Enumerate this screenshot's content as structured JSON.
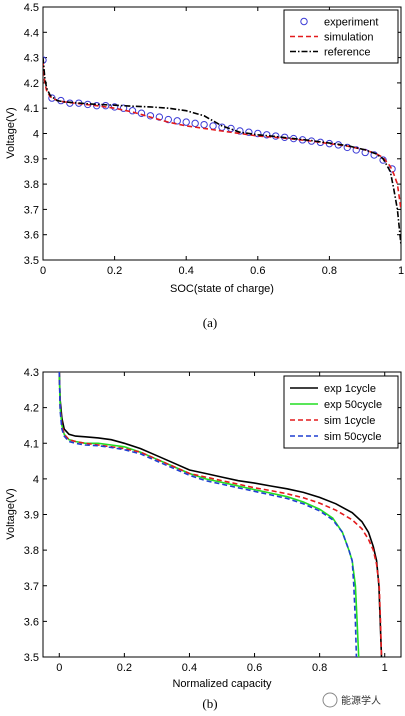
{
  "chart_data": [
    {
      "type": "line",
      "panel_caption": "(a)",
      "xlabel": "SOC(state of charge)",
      "ylabel": "Voltage(V)",
      "xlim": [
        0,
        1
      ],
      "ylim": [
        3.5,
        4.5
      ],
      "xticks": [
        "0",
        "0.2",
        "0.4",
        "0.6",
        "0.8",
        "1"
      ],
      "yticks": [
        "3.5",
        "3.6",
        "3.7",
        "3.8",
        "3.9",
        "4",
        "4.1",
        "4.2",
        "4.3",
        "4.4",
        "4.5"
      ],
      "legend_position": "top-right",
      "series": [
        {
          "name": "experiment",
          "color": "#3b3bd6",
          "style": "circle-markers",
          "x": [
            0.0,
            0.025,
            0.05,
            0.075,
            0.1,
            0.125,
            0.15,
            0.175,
            0.2,
            0.225,
            0.25,
            0.275,
            0.3,
            0.325,
            0.35,
            0.375,
            0.4,
            0.425,
            0.45,
            0.475,
            0.5,
            0.525,
            0.55,
            0.575,
            0.6,
            0.625,
            0.65,
            0.675,
            0.7,
            0.725,
            0.75,
            0.775,
            0.8,
            0.825,
            0.85,
            0.875,
            0.9,
            0.925,
            0.95,
            0.975
          ],
          "y": [
            4.29,
            4.14,
            4.13,
            4.12,
            4.12,
            4.115,
            4.11,
            4.11,
            4.105,
            4.1,
            4.09,
            4.08,
            4.07,
            4.065,
            4.055,
            4.05,
            4.045,
            4.04,
            4.035,
            4.03,
            4.025,
            4.02,
            4.01,
            4.005,
            4.0,
            3.995,
            3.99,
            3.985,
            3.98,
            3.975,
            3.97,
            3.965,
            3.96,
            3.955,
            3.945,
            3.935,
            3.925,
            3.915,
            3.895,
            3.86
          ]
        },
        {
          "name": "simulation",
          "color": "#e31a1c",
          "style": "dashed",
          "x": [
            0.0,
            0.005,
            0.01,
            0.02,
            0.04,
            0.06,
            0.1,
            0.15,
            0.2,
            0.25,
            0.3,
            0.35,
            0.4,
            0.45,
            0.5,
            0.55,
            0.6,
            0.65,
            0.7,
            0.75,
            0.8,
            0.85,
            0.9,
            0.93,
            0.95,
            0.97,
            0.98,
            0.99,
            1.0
          ],
          "y": [
            4.28,
            4.2,
            4.17,
            4.145,
            4.13,
            4.125,
            4.118,
            4.11,
            4.1,
            4.085,
            4.065,
            4.045,
            4.03,
            4.02,
            4.01,
            4.0,
            3.99,
            3.985,
            3.978,
            3.97,
            3.96,
            3.95,
            3.935,
            3.92,
            3.905,
            3.87,
            3.84,
            3.8,
            3.7
          ]
        },
        {
          "name": "reference",
          "color": "#000000",
          "style": "dash-dot",
          "x": [
            0.0,
            0.005,
            0.01,
            0.02,
            0.04,
            0.06,
            0.1,
            0.15,
            0.2,
            0.25,
            0.3,
            0.35,
            0.4,
            0.45,
            0.5,
            0.55,
            0.6,
            0.65,
            0.7,
            0.75,
            0.8,
            0.85,
            0.9,
            0.93,
            0.95,
            0.97,
            0.98,
            0.99,
            1.0
          ],
          "y": [
            4.3,
            4.22,
            4.18,
            4.15,
            4.13,
            4.125,
            4.12,
            4.115,
            4.112,
            4.108,
            4.105,
            4.1,
            4.09,
            4.07,
            4.03,
            4.005,
            3.995,
            3.988,
            3.98,
            3.972,
            3.962,
            3.952,
            3.935,
            3.92,
            3.9,
            3.85,
            3.78,
            3.7,
            3.56
          ]
        }
      ]
    },
    {
      "type": "line",
      "panel_caption": "(b)",
      "xlabel": "Normalized capacity",
      "ylabel": "Voltage(V)",
      "xlim": [
        -0.05,
        1.05
      ],
      "ylim": [
        3.5,
        4.3
      ],
      "xticks": [
        "0",
        "0.2",
        "0.4",
        "0.6",
        "0.8",
        "1"
      ],
      "yticks": [
        "3.5",
        "3.6",
        "3.7",
        "3.8",
        "3.9",
        "4",
        "4.1",
        "4.2",
        "4.3"
      ],
      "legend_position": "top-right",
      "series": [
        {
          "name": "exp 1cycle",
          "color": "#000000",
          "style": "solid",
          "x": [
            0.0,
            0.003,
            0.008,
            0.015,
            0.03,
            0.05,
            0.08,
            0.12,
            0.16,
            0.2,
            0.25,
            0.3,
            0.35,
            0.4,
            0.45,
            0.5,
            0.55,
            0.6,
            0.65,
            0.7,
            0.75,
            0.8,
            0.85,
            0.9,
            0.93,
            0.95,
            0.965,
            0.975,
            0.982,
            0.986,
            0.99
          ],
          "y": [
            4.3,
            4.22,
            4.17,
            4.14,
            4.125,
            4.12,
            4.118,
            4.115,
            4.11,
            4.1,
            4.085,
            4.065,
            4.045,
            4.025,
            4.015,
            4.005,
            3.995,
            3.988,
            3.98,
            3.972,
            3.962,
            3.948,
            3.93,
            3.905,
            3.88,
            3.85,
            3.81,
            3.77,
            3.7,
            3.6,
            3.5
          ]
        },
        {
          "name": "exp 50cycle",
          "color": "#22dd22",
          "style": "solid",
          "x": [
            0.0,
            0.003,
            0.008,
            0.015,
            0.03,
            0.05,
            0.08,
            0.12,
            0.16,
            0.2,
            0.25,
            0.3,
            0.35,
            0.4,
            0.45,
            0.5,
            0.55,
            0.6,
            0.65,
            0.7,
            0.75,
            0.8,
            0.84,
            0.87,
            0.89,
            0.9,
            0.91,
            0.915,
            0.92
          ],
          "y": [
            4.3,
            4.2,
            4.15,
            4.125,
            4.11,
            4.105,
            4.1,
            4.1,
            4.095,
            4.09,
            4.075,
            4.055,
            4.035,
            4.015,
            4.0,
            3.99,
            3.98,
            3.97,
            3.96,
            3.95,
            3.935,
            3.915,
            3.89,
            3.85,
            3.8,
            3.77,
            3.7,
            3.6,
            3.5
          ]
        },
        {
          "name": "sim 1cycle",
          "color": "#e31a1c",
          "style": "dashed",
          "x": [
            0.0,
            0.003,
            0.008,
            0.015,
            0.03,
            0.05,
            0.08,
            0.12,
            0.16,
            0.2,
            0.25,
            0.3,
            0.35,
            0.4,
            0.45,
            0.5,
            0.55,
            0.6,
            0.65,
            0.7,
            0.75,
            0.8,
            0.85,
            0.9,
            0.93,
            0.95,
            0.965,
            0.975,
            0.983,
            0.987,
            0.99
          ],
          "y": [
            4.3,
            4.2,
            4.15,
            4.125,
            4.11,
            4.105,
            4.1,
            4.095,
            4.09,
            4.085,
            4.075,
            4.055,
            4.035,
            4.015,
            4.005,
            3.995,
            3.985,
            3.975,
            3.967,
            3.958,
            3.947,
            3.932,
            3.912,
            3.885,
            3.86,
            3.83,
            3.8,
            3.76,
            3.7,
            3.6,
            3.5
          ]
        },
        {
          "name": "sim 50cycle",
          "color": "#1f3fd1",
          "style": "dashed",
          "x": [
            0.0,
            0.003,
            0.008,
            0.015,
            0.03,
            0.05,
            0.08,
            0.12,
            0.16,
            0.2,
            0.25,
            0.3,
            0.35,
            0.4,
            0.45,
            0.5,
            0.55,
            0.6,
            0.65,
            0.7,
            0.75,
            0.8,
            0.84,
            0.87,
            0.89,
            0.9,
            0.905,
            0.91,
            0.913
          ],
          "y": [
            4.3,
            4.19,
            4.14,
            4.12,
            4.105,
            4.1,
            4.095,
            4.093,
            4.088,
            4.082,
            4.07,
            4.05,
            4.03,
            4.01,
            3.995,
            3.985,
            3.975,
            3.965,
            3.955,
            3.945,
            3.93,
            3.91,
            3.885,
            3.85,
            3.8,
            3.77,
            3.7,
            3.6,
            3.5
          ]
        }
      ]
    }
  ],
  "watermark": "能源学人"
}
